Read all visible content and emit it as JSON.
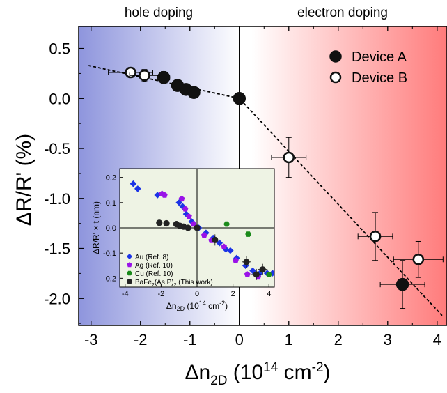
{
  "chart_data": {
    "type": "scatter",
    "xlabel_main": "Δn",
    "xlabel_sub": "2D",
    "xlabel_unit_open": " (10",
    "xlabel_unit_exp": "14",
    "xlabel_unit_close": " cm",
    "xlabel_unit_exp2": "-2",
    "xlabel_unit_end": ")",
    "ylabel": "ΔR/R' (%)",
    "xlim": [
      -3.25,
      4.2
    ],
    "ylim": [
      -2.27,
      0.72
    ],
    "xticks": [
      "-3",
      "-2",
      "-1",
      "0",
      "1",
      "2",
      "3",
      "4"
    ],
    "yticks": [
      "0.5",
      "0.0",
      "-0.5",
      "-1.0",
      "-1.5",
      "-2.0"
    ],
    "region_labels": {
      "left": "hole doping",
      "right": "electron doping"
    },
    "colors": {
      "hole_bg": "#8e95dd",
      "electron_bg": "#ff7b7b",
      "inset_bg": "#eef3e4"
    },
    "legend": {
      "position": "top-right"
    },
    "series": [
      {
        "name": "Device A",
        "marker": "filled-circle",
        "points": [
          {
            "x": -1.53,
            "y": 0.21,
            "xerr": 0.12,
            "yerr": 0.06
          },
          {
            "x": -1.25,
            "y": 0.13
          },
          {
            "x": -1.08,
            "y": 0.09
          },
          {
            "x": -0.92,
            "y": 0.06
          },
          {
            "x": 0.0,
            "y": 0.0
          },
          {
            "x": 3.3,
            "y": -1.86,
            "xerr": 0.45,
            "yerr": 0.24
          }
        ]
      },
      {
        "name": "Device B",
        "marker": "open-circle",
        "points": [
          {
            "x": -2.2,
            "y": 0.26,
            "xerr": 0.45,
            "yerr": 0.05
          },
          {
            "x": -1.92,
            "y": 0.23,
            "xerr": 0.3,
            "yerr": 0.06
          },
          {
            "x": 1.0,
            "y": -0.59,
            "xerr": 0.35,
            "yerr": 0.2
          },
          {
            "x": 2.75,
            "y": -1.38,
            "xerr": 0.35,
            "yerr": 0.24
          },
          {
            "x": 3.62,
            "y": -1.61,
            "xerr": 0.5,
            "yerr": 0.18
          }
        ]
      }
    ],
    "fit_line": [
      [
        -3.05,
        0.33
      ],
      [
        0.0,
        0.0
      ],
      [
        4.1,
        -2.17
      ]
    ],
    "inset": {
      "xlabel_main": "Δn",
      "xlabel_sub": "2D",
      "xlabel_unit": " (10",
      "xlabel_exp": "14",
      "xlabel_unit2": " cm",
      "xlabel_exp2": "-2",
      "xlabel_end": ")",
      "ylabel": "ΔR/R' × t (nm)",
      "xlim": [
        -4.3,
        4.3
      ],
      "ylim": [
        -0.235,
        0.235
      ],
      "xticks": [
        "-4",
        "-2",
        "0",
        "2",
        "4"
      ],
      "yticks": [
        "0.2",
        "0.1",
        "0.0",
        "-0.1",
        "-0.2"
      ],
      "series": [
        {
          "name": "Au (Ref. 8)",
          "marker": "diamond",
          "color": "#1b33e6",
          "points": [
            [
              -3.55,
              0.175
            ],
            [
              -3.3,
              0.155
            ],
            [
              -2.2,
              0.13
            ],
            [
              -1.95,
              0.135
            ],
            [
              -1.0,
              0.1
            ],
            [
              -0.8,
              0.085
            ],
            [
              -0.6,
              0.055
            ],
            [
              -0.3,
              0.025
            ],
            [
              0.1,
              0.0
            ],
            [
              0.5,
              -0.02
            ],
            [
              0.9,
              -0.04
            ],
            [
              1.25,
              -0.06
            ],
            [
              1.6,
              -0.085
            ],
            [
              1.85,
              -0.09
            ],
            [
              2.2,
              -0.12
            ],
            [
              2.7,
              -0.15
            ],
            [
              3.1,
              -0.17
            ],
            [
              3.5,
              -0.18
            ],
            [
              3.9,
              -0.18
            ],
            [
              4.2,
              -0.18
            ]
          ]
        },
        {
          "name": "Ag (Ref. 10)",
          "marker": "pentagon",
          "color": "#9a12e8",
          "points": [
            [
              -1.95,
              0.135
            ],
            [
              -1.8,
              0.13
            ],
            [
              -0.85,
              0.115
            ],
            [
              -0.65,
              0.075
            ],
            [
              -0.45,
              0.045
            ],
            [
              -0.2,
              0.015
            ],
            [
              0.4,
              -0.03
            ],
            [
              0.8,
              -0.05
            ],
            [
              1.5,
              -0.075
            ],
            [
              2.15,
              -0.13
            ],
            [
              2.8,
              -0.185
            ],
            [
              3.4,
              -0.195
            ]
          ]
        },
        {
          "name": "Cu (Ref. 10)",
          "marker": "hexagon",
          "color": "#1a8a1a",
          "points": [
            [
              1.65,
              0.015
            ],
            [
              2.85,
              -0.025
            ],
            [
              4.0,
              -0.185
            ]
          ]
        },
        {
          "name": "BaFe2(As,P)2 (This work)",
          "marker": "circle",
          "color": "#222222",
          "points": [
            [
              -2.1,
              0.02
            ],
            [
              -1.7,
              0.018
            ],
            [
              -1.15,
              0.015
            ],
            [
              -0.95,
              0.008
            ],
            [
              -0.75,
              0.005
            ],
            [
              -0.5,
              0.0
            ],
            [
              0.0,
              0.0
            ],
            [
              1.0,
              -0.048
            ],
            [
              2.75,
              -0.135
            ],
            [
              3.3,
              -0.185
            ],
            [
              3.65,
              -0.165
            ]
          ]
        }
      ],
      "legend_labels": [
        {
          "text": "Au (Ref. 8)"
        },
        {
          "text": "Ag (Ref. 10)"
        },
        {
          "text": "Cu (Ref. 10)"
        },
        {
          "text_pre": "BaFe",
          "sub1": "2",
          "text_mid": "(As,P)",
          "sub2": "2",
          "text_post": " (This work)"
        }
      ]
    }
  }
}
